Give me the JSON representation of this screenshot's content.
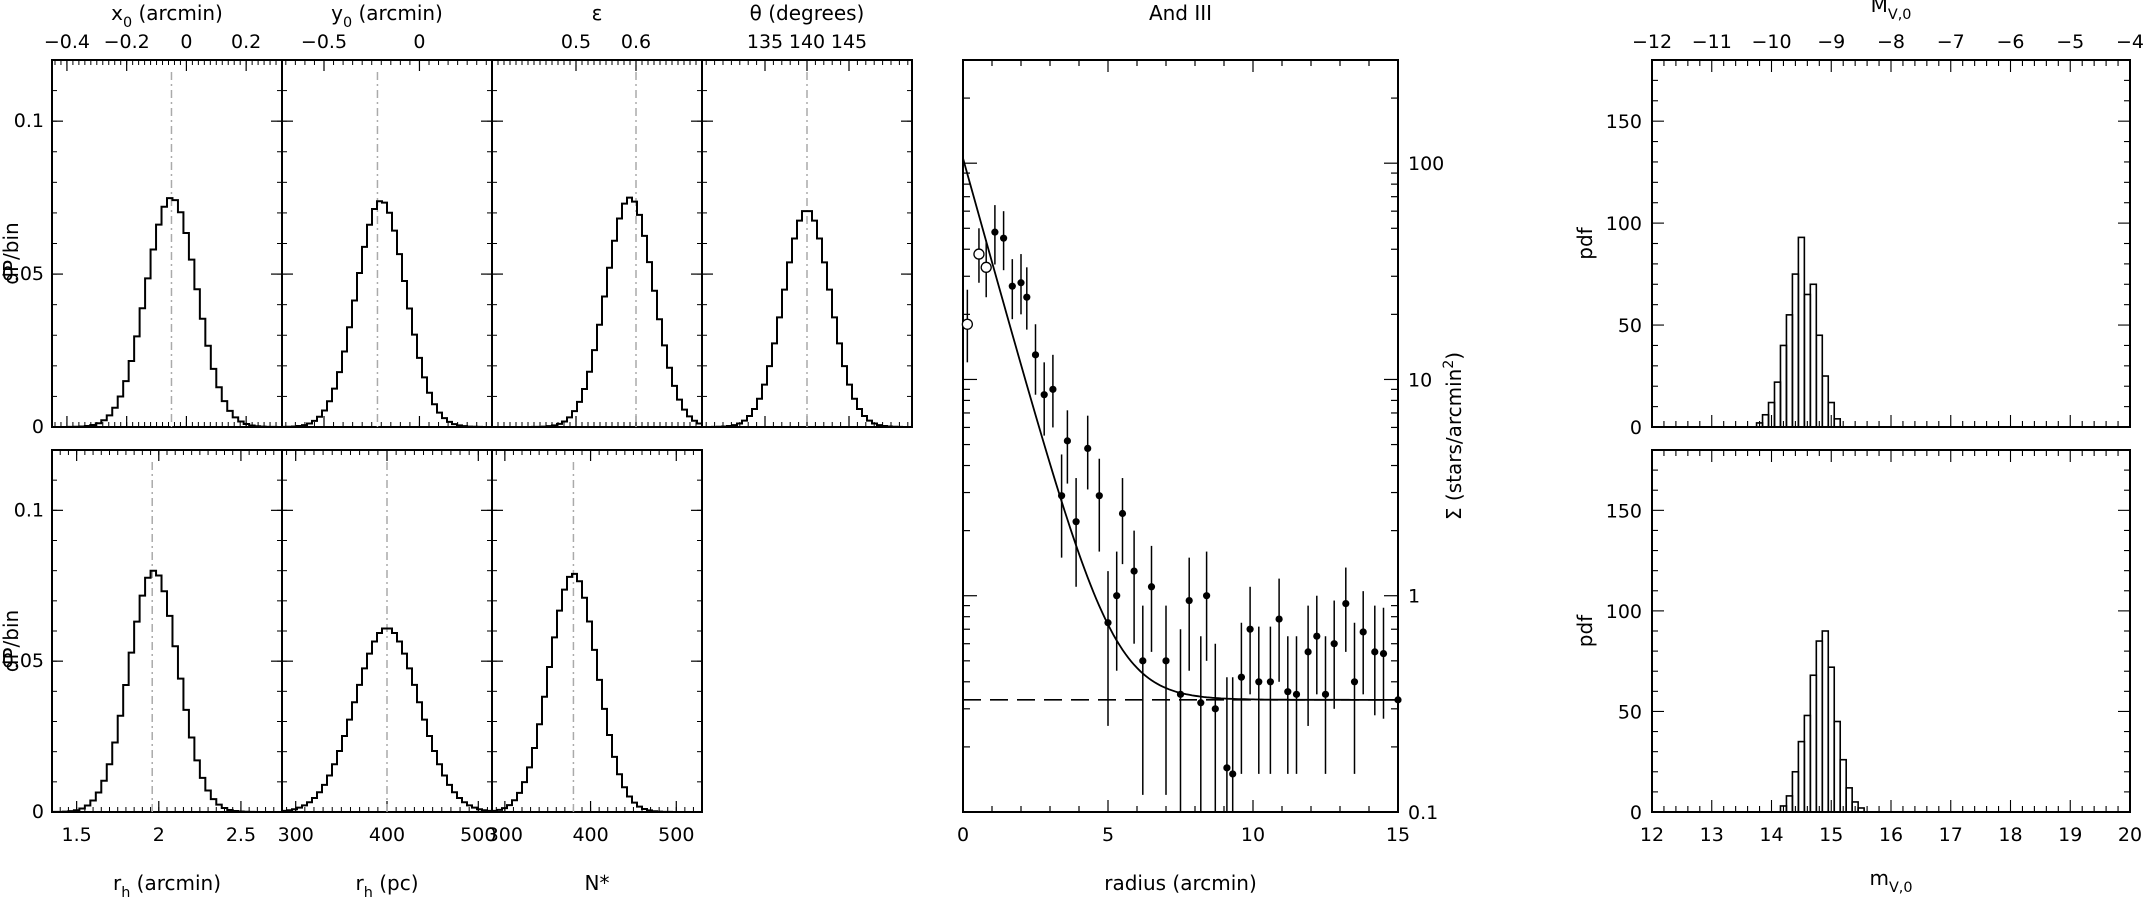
{
  "figure": {
    "panels": [
      {
        "id": "x0",
        "type": "histogram",
        "top_axis_label": "x",
        "top_axis_label_sub": "0",
        "top_axis_label_rest": " (arcmin)",
        "top_ticks": [
          {
            "v": -0.4,
            "t": "−0.4"
          },
          {
            "v": -0.2,
            "t": "−0.2"
          },
          {
            "v": 0,
            "t": "0"
          },
          {
            "v": 0.2,
            "t": "0.2"
          }
        ],
        "xlim": [
          -0.45,
          0.32
        ],
        "ylim": [
          0,
          0.12
        ],
        "y_ticks": [
          {
            "v": 0,
            "t": "0"
          },
          {
            "v": 0.05,
            "t": "0.05"
          },
          {
            "v": 0.1,
            "t": "0.1"
          }
        ],
        "ylabel": "dP/bin",
        "gaussian": {
          "peak": 0.075,
          "center": -0.05,
          "sigma": 0.085
        },
        "ref_line": -0.05
      },
      {
        "id": "y0",
        "type": "histogram",
        "top_axis_label": "y",
        "top_axis_label_sub": "0",
        "top_axis_label_rest": " (arcmin)",
        "top_ticks": [
          {
            "v": -0.5,
            "t": "−0.5"
          },
          {
            "v": 0,
            "t": "0"
          }
        ],
        "xlim": [
          -0.72,
          0.38
        ],
        "ylim": [
          0,
          0.12
        ],
        "gaussian": {
          "peak": 0.074,
          "center": -0.2,
          "sigma": 0.13
        },
        "ref_line": -0.22
      },
      {
        "id": "eps",
        "type": "histogram",
        "top_axis_label": "ε",
        "top_ticks": [
          {
            "v": 0.5,
            "t": "0.5"
          },
          {
            "v": 0.6,
            "t": "0.6"
          }
        ],
        "xlim": [
          0.36,
          0.71
        ],
        "ylim": [
          0,
          0.12
        ],
        "gaussian": {
          "peak": 0.075,
          "center": 0.59,
          "sigma": 0.04
        },
        "ref_line": 0.6
      },
      {
        "id": "theta",
        "type": "histogram",
        "top_axis_label": "θ (degrees)",
        "top_ticks": [
          {
            "v": 135,
            "t": "135"
          },
          {
            "v": 140,
            "t": "140"
          },
          {
            "v": 145,
            "t": "145"
          }
        ],
        "xlim": [
          127.5,
          152.5
        ],
        "ylim": [
          0,
          0.12
        ],
        "gaussian": {
          "peak": 0.071,
          "center": 140,
          "sigma": 2.8
        },
        "ref_line": 140
      },
      {
        "id": "rh_arcmin",
        "type": "histogram",
        "xlabel": "r",
        "xlabel_sub": "h",
        "xlabel_rest": " (arcmin)",
        "bottom_ticks": [
          {
            "v": 1.5,
            "t": "1.5"
          },
          {
            "v": 2,
            "t": "2"
          },
          {
            "v": 2.5,
            "t": "2.5"
          }
        ],
        "xlim": [
          1.35,
          2.75
        ],
        "ylim": [
          0,
          0.12
        ],
        "y_ticks": [
          {
            "v": 0,
            "t": "0"
          },
          {
            "v": 0.05,
            "t": "0.05"
          },
          {
            "v": 0.1,
            "t": "0.1"
          }
        ],
        "ylabel": "dP/bin",
        "gaussian": {
          "peak": 0.08,
          "center": 1.97,
          "sigma": 0.15
        },
        "ref_line": 1.96
      },
      {
        "id": "rh_pc",
        "type": "histogram",
        "xlabel": "r",
        "xlabel_sub": "h",
        "xlabel_rest": " (pc)",
        "bottom_ticks": [
          {
            "v": 300,
            "t": "300"
          },
          {
            "v": 400,
            "t": "400"
          },
          {
            "v": 500,
            "t": "500"
          }
        ],
        "xlim": [
          285,
          515
        ],
        "ylim": [
          0,
          0.12
        ],
        "gaussian": {
          "peak": 0.061,
          "center": 400,
          "sigma": 35
        },
        "ref_line": 400
      },
      {
        "id": "nstar",
        "type": "histogram",
        "xlabel": "N*",
        "bottom_ticks": [
          {
            "v": 300,
            "t": "300"
          },
          {
            "v": 400,
            "t": "400"
          },
          {
            "v": 500,
            "t": "500"
          }
        ],
        "xlim": [
          285,
          530
        ],
        "ylim": [
          0,
          0.12
        ],
        "gaussian": {
          "peak": 0.079,
          "center": 380,
          "sigma": 28
        },
        "ref_line": 380
      }
    ],
    "profile": {
      "title": "And III",
      "xlabel": "radius (arcmin)",
      "ylabel": "Σ (stars/arcmin",
      "ylabel_sup": "2",
      "ylabel_close": ")",
      "x_ticks": [
        {
          "v": 0,
          "t": "0"
        },
        {
          "v": 5,
          "t": "5"
        },
        {
          "v": 10,
          "t": "10"
        },
        {
          "v": 15,
          "t": "15"
        }
      ],
      "y_ticks": [
        {
          "v": 0.1,
          "t": "0.1"
        },
        {
          "v": 1,
          "t": "1"
        },
        {
          "v": 10,
          "t": "10"
        },
        {
          "v": 100,
          "t": "100"
        }
      ],
      "xlim": [
        0,
        15
      ],
      "ylim": [
        0.1,
        300
      ],
      "background_level": 0.33
    },
    "mag_panels": [
      {
        "id": "MV",
        "top_axis_label": "M",
        "top_axis_label_sub": "V,0",
        "top_ticks": [
          {
            "v": -12,
            "t": "−12"
          },
          {
            "v": -11,
            "t": "−11"
          },
          {
            "v": -10,
            "t": "−10"
          },
          {
            "v": -9,
            "t": "−9"
          },
          {
            "v": -8,
            "t": "−8"
          },
          {
            "v": -7,
            "t": "−7"
          },
          {
            "v": -6,
            "t": "−6"
          },
          {
            "v": -5,
            "t": "−5"
          },
          {
            "v": -4,
            "t": "−4"
          }
        ],
        "xlim": [
          -12,
          -4
        ],
        "ylim": [
          0,
          180
        ],
        "y_ticks": [
          {
            "v": 0,
            "t": "0"
          },
          {
            "v": 50,
            "t": "50"
          },
          {
            "v": 100,
            "t": "100"
          },
          {
            "v": 150,
            "t": "150"
          }
        ],
        "ylabel": "pdf"
      },
      {
        "id": "mV",
        "xlabel": "m",
        "xlabel_sub": "V,0",
        "bottom_ticks": [
          {
            "v": 12,
            "t": "12"
          },
          {
            "v": 13,
            "t": "13"
          },
          {
            "v": 14,
            "t": "14"
          },
          {
            "v": 15,
            "t": "15"
          },
          {
            "v": 16,
            "t": "16"
          },
          {
            "v": 17,
            "t": "17"
          },
          {
            "v": 18,
            "t": "18"
          },
          {
            "v": 19,
            "t": "19"
          },
          {
            "v": 20,
            "t": "20"
          }
        ],
        "xlim": [
          12,
          20
        ],
        "ylim": [
          0,
          180
        ],
        "y_ticks": [
          {
            "v": 0,
            "t": "0"
          },
          {
            "v": 50,
            "t": "50"
          },
          {
            "v": 100,
            "t": "100"
          },
          {
            "v": 150,
            "t": "150"
          }
        ],
        "ylabel": "pdf"
      }
    ]
  },
  "chart_data": [
    {
      "type": "bar",
      "xlabel": "x0 (arcmin)",
      "ylabel": "dP/bin",
      "xlim": [
        -0.45,
        0.32
      ],
      "ylim": [
        0,
        0.12
      ],
      "series": [
        {
          "peak": 0.075,
          "center": -0.05,
          "sigma": 0.085
        }
      ]
    },
    {
      "type": "bar",
      "xlabel": "y0 (arcmin)",
      "ylabel": "dP/bin",
      "xlim": [
        -0.72,
        0.38
      ],
      "ylim": [
        0,
        0.12
      ],
      "series": [
        {
          "peak": 0.074,
          "center": -0.2,
          "sigma": 0.13
        }
      ]
    },
    {
      "type": "bar",
      "xlabel": "ε",
      "ylabel": "dP/bin",
      "xlim": [
        0.36,
        0.71
      ],
      "ylim": [
        0,
        0.12
      ],
      "series": [
        {
          "peak": 0.075,
          "center": 0.59,
          "sigma": 0.04
        }
      ]
    },
    {
      "type": "bar",
      "xlabel": "θ (degrees)",
      "ylabel": "dP/bin",
      "xlim": [
        127.5,
        152.5
      ],
      "ylim": [
        0,
        0.12
      ],
      "series": [
        {
          "peak": 0.071,
          "center": 140,
          "sigma": 2.8
        }
      ]
    },
    {
      "type": "bar",
      "xlabel": "rh (arcmin)",
      "ylabel": "dP/bin",
      "xlim": [
        1.35,
        2.75
      ],
      "ylim": [
        0,
        0.12
      ],
      "series": [
        {
          "peak": 0.08,
          "center": 1.97,
          "sigma": 0.15
        }
      ]
    },
    {
      "type": "bar",
      "xlabel": "rh (pc)",
      "ylabel": "dP/bin",
      "xlim": [
        285,
        515
      ],
      "ylim": [
        0,
        0.12
      ],
      "series": [
        {
          "peak": 0.061,
          "center": 400,
          "sigma": 35
        }
      ]
    },
    {
      "type": "bar",
      "xlabel": "N*",
      "ylabel": "dP/bin",
      "xlim": [
        285,
        530
      ],
      "ylim": [
        0,
        0.12
      ],
      "series": [
        {
          "peak": 0.079,
          "center": 380,
          "sigma": 28
        }
      ]
    },
    {
      "type": "scatter",
      "title": "And III",
      "xlabel": "radius (arcmin)",
      "ylabel": "Σ (stars/arcmin2)",
      "xlim": [
        0,
        15
      ],
      "ylim": [
        0.1,
        300
      ],
      "yscale": "log",
      "series": [
        {
          "name": "",
          "marker": "open",
          "points": [
            [
              0.15,
              18,
              12,
              26
            ],
            [
              0.55,
              38,
              28,
              50
            ],
            [
              0.8,
              33,
              24,
              44
            ]
          ]
        },
        {
          "name": "",
          "marker": "filled",
          "points": [
            [
              1.1,
              48,
              34,
              64
            ],
            [
              1.4,
              45,
              32,
              60
            ],
            [
              1.7,
              27,
              19,
              36
            ],
            [
              2.0,
              28,
              20,
              38
            ],
            [
              2.2,
              24,
              17,
              33
            ],
            [
              2.5,
              13,
              8.5,
              18
            ],
            [
              2.8,
              8.5,
              5.5,
              12
            ],
            [
              3.1,
              9,
              6,
              13
            ],
            [
              3.4,
              2.9,
              1.5,
              4.5
            ],
            [
              3.6,
              5.2,
              3.3,
              7.2
            ],
            [
              3.9,
              2.2,
              1.1,
              3.5
            ],
            [
              4.3,
              4.8,
              3.1,
              6.8
            ],
            [
              4.7,
              2.9,
              1.6,
              4.3
            ],
            [
              5.0,
              0.75,
              0.25,
              1.3
            ],
            [
              5.3,
              1.0,
              0.45,
              1.6
            ],
            [
              5.5,
              2.4,
              1.4,
              3.5
            ],
            [
              5.9,
              1.3,
              0.6,
              2.0
            ],
            [
              6.2,
              0.5,
              0.12,
              0.9
            ],
            [
              6.5,
              1.1,
              0.55,
              1.7
            ],
            [
              7.0,
              0.5,
              0.12,
              0.9
            ],
            [
              7.5,
              0.35,
              0.1,
              0.7
            ],
            [
              7.8,
              0.95,
              0.45,
              1.5
            ],
            [
              8.2,
              0.32,
              0.1,
              0.65
            ],
            [
              8.4,
              1.0,
              0.5,
              1.6
            ],
            [
              8.7,
              0.3,
              0.1,
              0.6
            ],
            [
              9.1,
              0.16,
              0.1,
              0.42
            ],
            [
              9.3,
              0.15,
              0.1,
              0.42
            ],
            [
              9.6,
              0.42,
              0.15,
              0.75
            ],
            [
              9.9,
              0.7,
              0.35,
              1.1
            ],
            [
              10.2,
              0.4,
              0.15,
              0.72
            ],
            [
              10.6,
              0.4,
              0.15,
              0.72
            ],
            [
              10.9,
              0.78,
              0.4,
              1.2
            ],
            [
              11.2,
              0.36,
              0.15,
              0.65
            ],
            [
              11.5,
              0.35,
              0.15,
              0.65
            ],
            [
              11.9,
              0.55,
              0.25,
              0.9
            ],
            [
              12.2,
              0.65,
              0.35,
              1.0
            ],
            [
              12.5,
              0.35,
              0.15,
              0.65
            ],
            [
              12.8,
              0.6,
              0.3,
              0.95
            ],
            [
              13.2,
              0.92,
              0.55,
              1.35
            ],
            [
              13.5,
              0.4,
              0.15,
              0.75
            ],
            [
              13.8,
              0.68,
              0.35,
              1.05
            ],
            [
              14.2,
              0.55,
              0.28,
              0.9
            ],
            [
              14.5,
              0.54,
              0.27,
              0.88
            ],
            [
              15.0,
              0.33,
              0.15,
              0.55
            ]
          ]
        },
        {
          "name": "",
          "type": "line",
          "model": "background + central*exp(-r/scale)",
          "background": 0.33,
          "central": 105,
          "scale": 0.9
        },
        {
          "name": "",
          "type": "hline",
          "value": 0.33,
          "style": "dashed"
        }
      ]
    },
    {
      "type": "bar",
      "xlabel": "M V,0",
      "ylabel": "pdf",
      "xlim": [
        -12,
        -4
      ],
      "ylim": [
        0,
        180
      ],
      "bin_width": 0.1,
      "x": [
        -10.2,
        -10.1,
        -10.0,
        -9.9,
        -9.8,
        -9.7,
        -9.6,
        -9.5,
        -9.4,
        -9.3,
        -9.2,
        -9.1,
        -9.0,
        -8.9
      ],
      "values": [
        2,
        6,
        12,
        22,
        40,
        55,
        75,
        93,
        65,
        70,
        45,
        25,
        12,
        4
      ]
    },
    {
      "type": "bar",
      "xlabel": "m V,0",
      "ylabel": "pdf",
      "xlim": [
        12,
        20
      ],
      "ylim": [
        0,
        180
      ],
      "bin_width": 0.1,
      "x": [
        14.2,
        14.3,
        14.4,
        14.5,
        14.6,
        14.7,
        14.8,
        14.9,
        15.0,
        15.1,
        15.2,
        15.3,
        15.4,
        15.5
      ],
      "values": [
        3,
        8,
        20,
        35,
        48,
        68,
        85,
        90,
        72,
        45,
        26,
        12,
        5,
        2
      ]
    }
  ]
}
